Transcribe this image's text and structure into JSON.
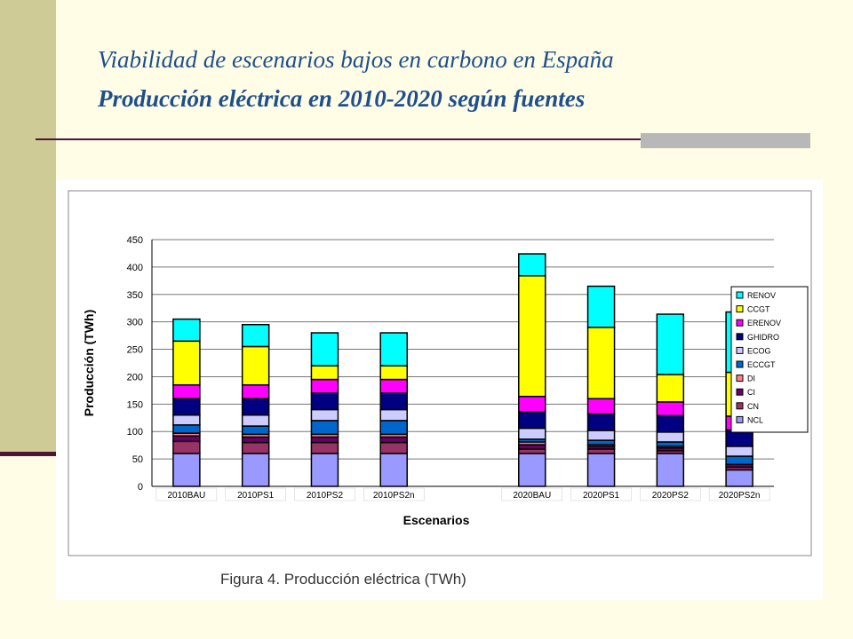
{
  "slide": {
    "title_line1": "Viabilidad de escenarios bajos en carbono en España",
    "title_line2": "Producción eléctrica en 2010-2020 según fuentes",
    "caption": "Figura 4. Producción eléctrica (TWh)"
  },
  "chart_data": {
    "type": "bar",
    "stacked": true,
    "xlabel": "Escenarios",
    "ylabel": "Producción (TWh)",
    "ylim": [
      0,
      450
    ],
    "yticks": [
      0,
      50,
      100,
      150,
      200,
      250,
      300,
      350,
      400,
      450
    ],
    "grid": true,
    "legend_position": "right",
    "categories": [
      "2010BAU",
      "2010PS1",
      "2010PS2",
      "2010PS2n",
      "",
      "2020BAU",
      "2020PS1",
      "2020PS2",
      "2020PS2n"
    ],
    "series": [
      {
        "name": "NCL",
        "color": "#9999ff",
        "values": [
          60,
          60,
          60,
          60,
          0,
          60,
          60,
          60,
          30
        ]
      },
      {
        "name": "CN",
        "color": "#993366",
        "values": [
          22,
          20,
          20,
          20,
          0,
          8,
          8,
          5,
          5
        ]
      },
      {
        "name": "CI",
        "color": "#660066",
        "values": [
          10,
          10,
          10,
          10,
          0,
          8,
          5,
          5,
          5
        ]
      },
      {
        "name": "DI",
        "color": "#ff8080",
        "values": [
          5,
          5,
          5,
          5,
          0,
          5,
          3,
          3,
          0
        ]
      },
      {
        "name": "ECCGT",
        "color": "#0066cc",
        "values": [
          15,
          15,
          25,
          25,
          0,
          5,
          8,
          8,
          15
        ]
      },
      {
        "name": "ECOG",
        "color": "#ccccff",
        "values": [
          18,
          20,
          20,
          20,
          0,
          20,
          18,
          18,
          18
        ]
      },
      {
        "name": "GHIDRO",
        "color": "#000080",
        "values": [
          30,
          30,
          30,
          30,
          0,
          30,
          30,
          30,
          30
        ]
      },
      {
        "name": "ERENOV",
        "color": "#ff00ff",
        "values": [
          25,
          25,
          25,
          25,
          0,
          28,
          28,
          25,
          25
        ]
      },
      {
        "name": "CCGT",
        "color": "#ffff00",
        "values": [
          80,
          70,
          25,
          25,
          0,
          220,
          130,
          50,
          80
        ]
      },
      {
        "name": "RENOV",
        "color": "#00ffff",
        "values": [
          40,
          40,
          60,
          60,
          0,
          40,
          75,
          110,
          110
        ]
      }
    ]
  }
}
